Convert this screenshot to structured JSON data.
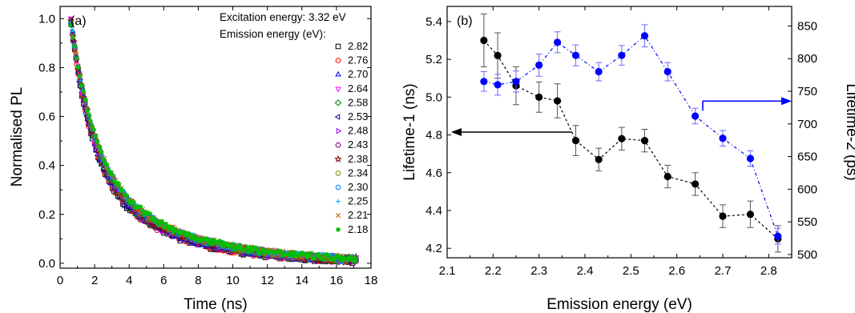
{
  "chart_data": [
    {
      "type": "scatter",
      "panel_label": "(a)",
      "xlabel": "Time (ns)",
      "ylabel": "Normalised PL",
      "xlim": [
        0,
        18
      ],
      "ylim": [
        -0.02,
        1.05
      ],
      "xticks": [
        "0",
        "2",
        "4",
        "6",
        "8",
        "10",
        "12",
        "14",
        "16",
        "18"
      ],
      "yticks": [
        "0.0",
        "0.2",
        "0.4",
        "0.6",
        "0.8",
        "1.0"
      ],
      "annotation_line1": "Excitation energy: 3.32 eV",
      "annotation_line2": "Emission energy (eV):",
      "decay_model": {
        "t0": 0.6,
        "t_end": 17.1,
        "amp_fast": 0.6,
        "tau_fast": 1.3,
        "amp_slow": 0.4,
        "tau_slow": 5.0,
        "noise": 0.012
      },
      "legend_position": "top-right",
      "series": [
        {
          "name": "2.82",
          "marker": "square",
          "color": "#000000"
        },
        {
          "name": "2.76",
          "marker": "circle",
          "color": "#ff0000"
        },
        {
          "name": "2.70",
          "marker": "triangle-up",
          "color": "#0000ff"
        },
        {
          "name": "2.64",
          "marker": "triangle-down",
          "color": "#ff00ff"
        },
        {
          "name": "2.58",
          "marker": "diamond",
          "color": "#008000"
        },
        {
          "name": "2.53",
          "marker": "triangle-left",
          "color": "#000080"
        },
        {
          "name": "2.48",
          "marker": "triangle-right",
          "color": "#8000ff"
        },
        {
          "name": "2.43",
          "marker": "hexagon",
          "color": "#800080"
        },
        {
          "name": "2.38",
          "marker": "star",
          "color": "#800000"
        },
        {
          "name": "2.34",
          "marker": "circle",
          "color": "#808000"
        },
        {
          "name": "2.30",
          "marker": "circle",
          "color": "#0080ff"
        },
        {
          "name": "2.25",
          "marker": "plus",
          "color": "#00a0ff"
        },
        {
          "name": "2.21",
          "marker": "cross",
          "color": "#c06000"
        },
        {
          "name": "2.18",
          "marker": "asterisk",
          "color": "#00c000"
        }
      ]
    },
    {
      "type": "line",
      "panel_label": "(b)",
      "xlabel": "Emission energy (eV)",
      "ylabel_left": "Lifetime-1 (ns)",
      "ylabel_right": "Lifetime-2 (ps)",
      "xlim": [
        2.1,
        2.85
      ],
      "ylim_left": [
        4.15,
        5.48
      ],
      "ylim_right": [
        495,
        880
      ],
      "xticks": [
        "2.1",
        "2.2",
        "2.3",
        "2.4",
        "2.5",
        "2.6",
        "2.7",
        "2.8"
      ],
      "yticks_left": [
        "4.2",
        "4.4",
        "4.6",
        "4.8",
        "5.0",
        "5.2",
        "5.4"
      ],
      "yticks_right": [
        "500",
        "550",
        "600",
        "650",
        "700",
        "750",
        "800",
        "850"
      ],
      "x": [
        2.18,
        2.21,
        2.25,
        2.3,
        2.34,
        2.38,
        2.43,
        2.48,
        2.53,
        2.58,
        2.64,
        2.7,
        2.76,
        2.82
      ],
      "series": [
        {
          "axis": "left",
          "color": "#000000",
          "values": [
            5.3,
            5.22,
            5.06,
            5.0,
            4.98,
            4.77,
            4.67,
            4.78,
            4.77,
            4.58,
            4.54,
            4.37,
            4.38,
            4.25
          ],
          "errors": [
            0.14,
            0.12,
            0.1,
            0.08,
            0.09,
            0.08,
            0.06,
            0.06,
            0.06,
            0.06,
            0.06,
            0.06,
            0.07,
            0.07
          ]
        },
        {
          "axis": "right",
          "color": "#0000ff",
          "values": [
            765,
            760,
            765,
            790,
            825,
            805,
            780,
            805,
            835,
            780,
            712,
            678,
            647,
            528
          ],
          "errors": [
            15,
            16,
            16,
            17,
            16,
            16,
            14,
            15,
            17,
            14,
            12,
            12,
            12,
            12
          ]
        }
      ],
      "arrow_left_color": "#000000",
      "arrow_right_color": "#0000ff"
    }
  ]
}
